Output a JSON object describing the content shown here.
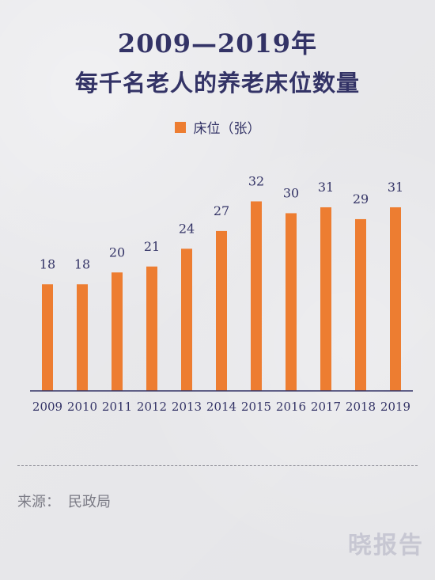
{
  "title": {
    "line1": "2009—2019年",
    "line2": "每千名老人的养老床位数量"
  },
  "legend": {
    "label": "床位（张）"
  },
  "colors": {
    "bar": "#ed7d31",
    "text": "#333366",
    "axis": "#333366"
  },
  "chart_data": {
    "type": "bar",
    "title": "2009—2019年 每千名老人的养老床位数量",
    "categories": [
      "2009",
      "2010",
      "2011",
      "2012",
      "2013",
      "2014",
      "2015",
      "2016",
      "2017",
      "2018",
      "2019"
    ],
    "series": [
      {
        "name": "床位（张）",
        "values": [
          18,
          18,
          20,
          21,
          24,
          27,
          32,
          30,
          31,
          29,
          31
        ]
      }
    ],
    "ylim": [
      0,
      33
    ],
    "grid": false,
    "legend_position": "top-center"
  },
  "source": {
    "prefix": "来源：",
    "value": "民政局"
  },
  "watermark": "晓报告"
}
